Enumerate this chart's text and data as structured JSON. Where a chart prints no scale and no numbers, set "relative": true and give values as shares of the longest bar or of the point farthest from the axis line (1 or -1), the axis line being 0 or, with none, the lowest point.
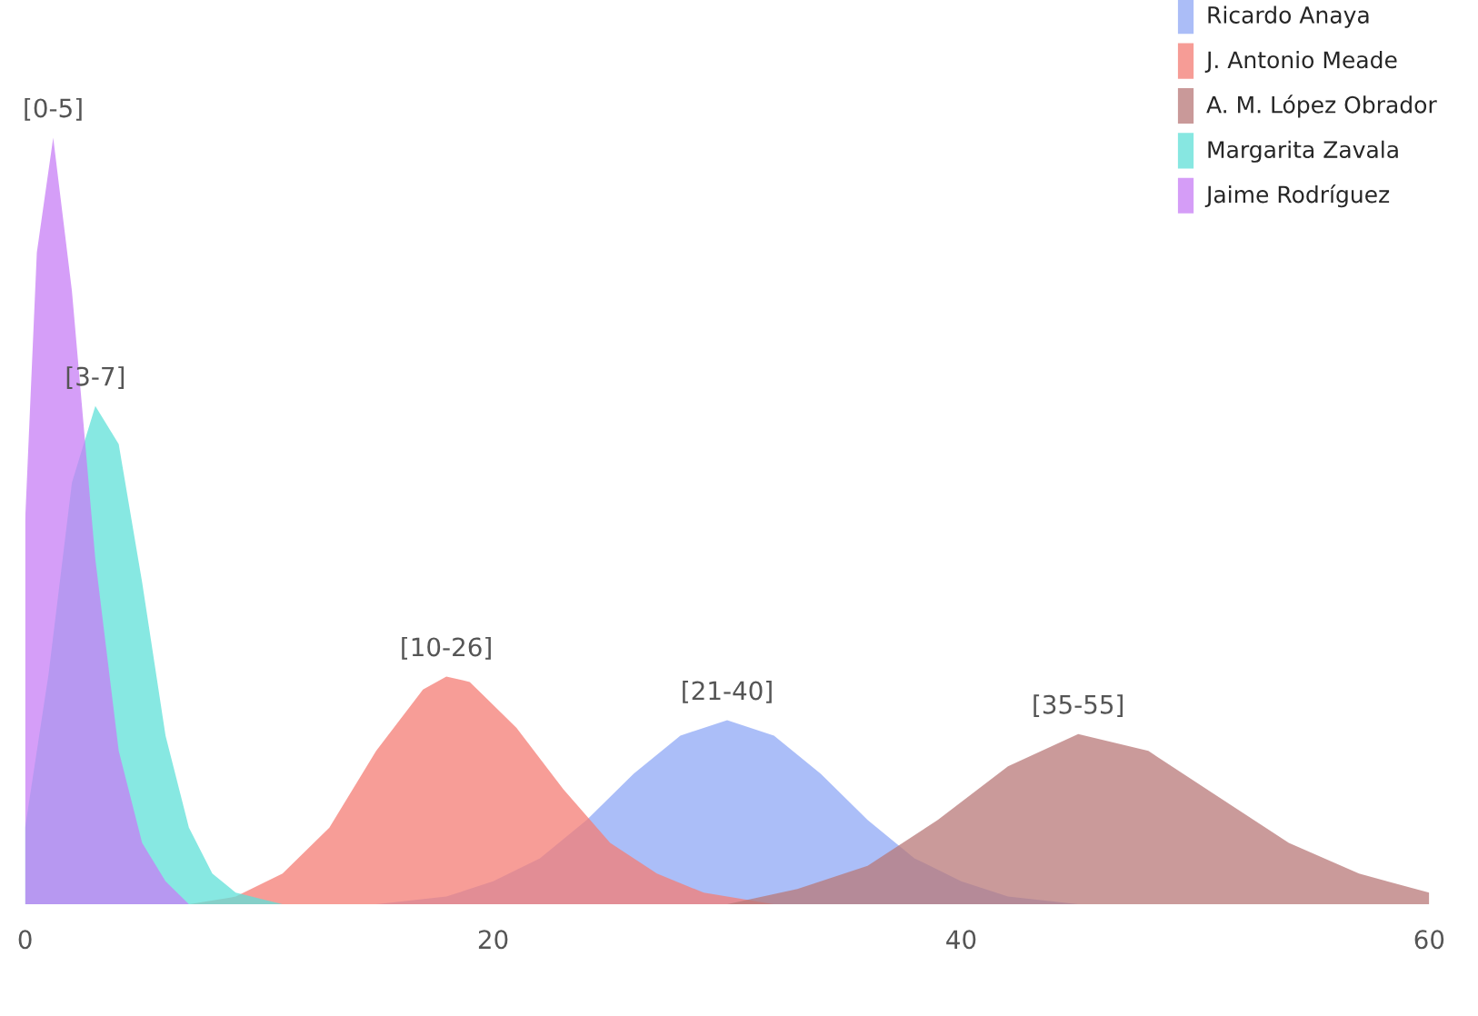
{
  "chart_data": {
    "type": "area",
    "relative": true,
    "xlim": [
      0,
      60
    ],
    "xticks": [
      0,
      20,
      40,
      60
    ],
    "grid": false,
    "legend": "top right",
    "series": [
      {
        "name": "Ricardo Anaya",
        "color": "#8fa8f5",
        "x": [
          15,
          18,
          20,
          22,
          24,
          26,
          28,
          30,
          32,
          34,
          36,
          38,
          40,
          42,
          45
        ],
        "values": [
          0.0,
          0.01,
          0.03,
          0.06,
          0.11,
          0.17,
          0.22,
          0.24,
          0.22,
          0.17,
          0.11,
          0.06,
          0.03,
          0.01,
          0.0
        ]
      },
      {
        "name": "J. Antonio Meade",
        "color": "#f47c74",
        "x": [
          7,
          9,
          11,
          13,
          15,
          17,
          18,
          19,
          21,
          23,
          25,
          27,
          29,
          32
        ],
        "values": [
          0.0,
          0.01,
          0.04,
          0.1,
          0.2,
          0.28,
          0.297,
          0.29,
          0.23,
          0.15,
          0.08,
          0.04,
          0.015,
          0.0
        ]
      },
      {
        "name": "A. M. López Obrador",
        "color": "#b87878",
        "x": [
          30,
          33,
          36,
          39,
          42,
          45,
          48,
          51,
          54,
          57,
          60
        ],
        "values": [
          0.0,
          0.02,
          0.05,
          0.11,
          0.18,
          0.222,
          0.2,
          0.14,
          0.08,
          0.04,
          0.015
        ]
      },
      {
        "name": "Margarita Zavala",
        "color": "#5fe0d8",
        "x": [
          0,
          1,
          2,
          3,
          4,
          5,
          6,
          7,
          8,
          9,
          11
        ],
        "values": [
          0.1,
          0.3,
          0.55,
          0.65,
          0.6,
          0.42,
          0.22,
          0.1,
          0.04,
          0.015,
          0.0
        ]
      },
      {
        "name": "Jaime Rodríguez",
        "color": "#c77df5",
        "x": [
          0,
          0.5,
          1.2,
          2,
          3,
          4,
          5,
          6,
          7
        ],
        "values": [
          0.5,
          0.85,
          1.0,
          0.8,
          0.45,
          0.2,
          0.08,
          0.03,
          0.0
        ]
      }
    ],
    "annotations": [
      {
        "text": "[0-5]",
        "x": 1.2,
        "y": 1.0
      },
      {
        "text": "[3-7]",
        "x": 3,
        "y": 0.65
      },
      {
        "text": "[10-26]",
        "x": 18,
        "y": 0.297
      },
      {
        "text": "[21-40]",
        "x": 30,
        "y": 0.24
      },
      {
        "text": "[35-55]",
        "x": 45,
        "y": 0.222
      }
    ]
  }
}
